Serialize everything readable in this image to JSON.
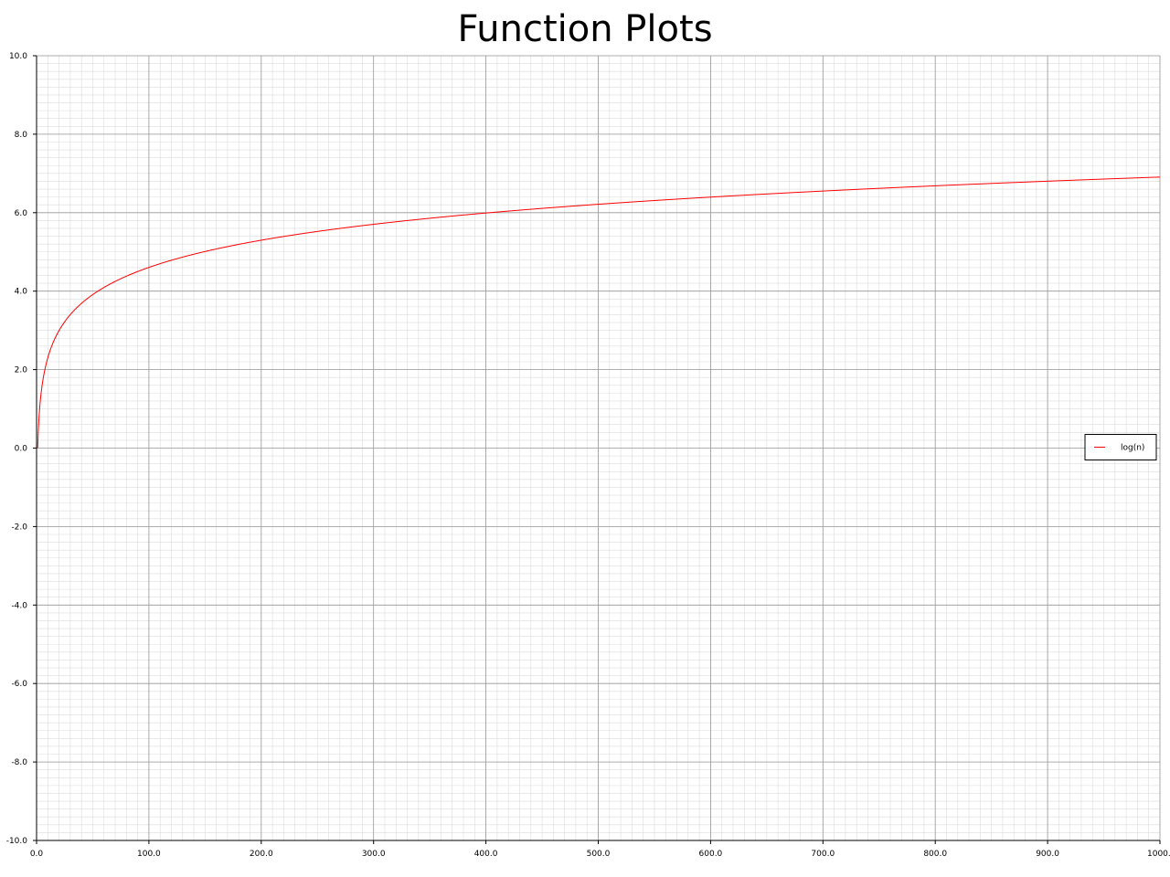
{
  "chart_data": {
    "type": "line",
    "title": "Function Plots",
    "xlabel": "",
    "ylabel": "",
    "xlim": [
      0,
      1000
    ],
    "ylim": [
      -10,
      10
    ],
    "x_ticks": [
      0,
      100,
      200,
      300,
      400,
      500,
      600,
      700,
      800,
      900,
      1000
    ],
    "x_tick_labels": [
      "0.0",
      "100.0",
      "200.0",
      "300.0",
      "400.0",
      "500.0",
      "600.0",
      "700.0",
      "800.0",
      "900.0",
      "1000."
    ],
    "y_ticks": [
      10,
      8,
      6,
      4,
      2,
      0,
      -2,
      -4,
      -6,
      -8,
      -10
    ],
    "y_tick_labels": [
      "10.0",
      "8.0",
      "6.0",
      "4.0",
      "2.0",
      "0.0",
      "-2.0",
      "-4.0",
      "-6.0",
      "-8.0",
      "-10.0"
    ],
    "grid": true,
    "legend_position": "right",
    "series": [
      {
        "name": "log(n)",
        "color": "#ff0000",
        "function": "log(n)",
        "x_range": [
          1,
          1000
        ],
        "sample_points": [
          {
            "x": 1,
            "y": 0.0
          },
          {
            "x": 10,
            "y": 2.3
          },
          {
            "x": 50,
            "y": 3.91
          },
          {
            "x": 100,
            "y": 4.61
          },
          {
            "x": 200,
            "y": 5.3
          },
          {
            "x": 300,
            "y": 5.7
          },
          {
            "x": 400,
            "y": 5.99
          },
          {
            "x": 500,
            "y": 6.21
          },
          {
            "x": 600,
            "y": 6.4
          },
          {
            "x": 700,
            "y": 6.55
          },
          {
            "x": 800,
            "y": 6.68
          },
          {
            "x": 900,
            "y": 6.8
          },
          {
            "x": 1000,
            "y": 6.91
          }
        ]
      }
    ]
  }
}
